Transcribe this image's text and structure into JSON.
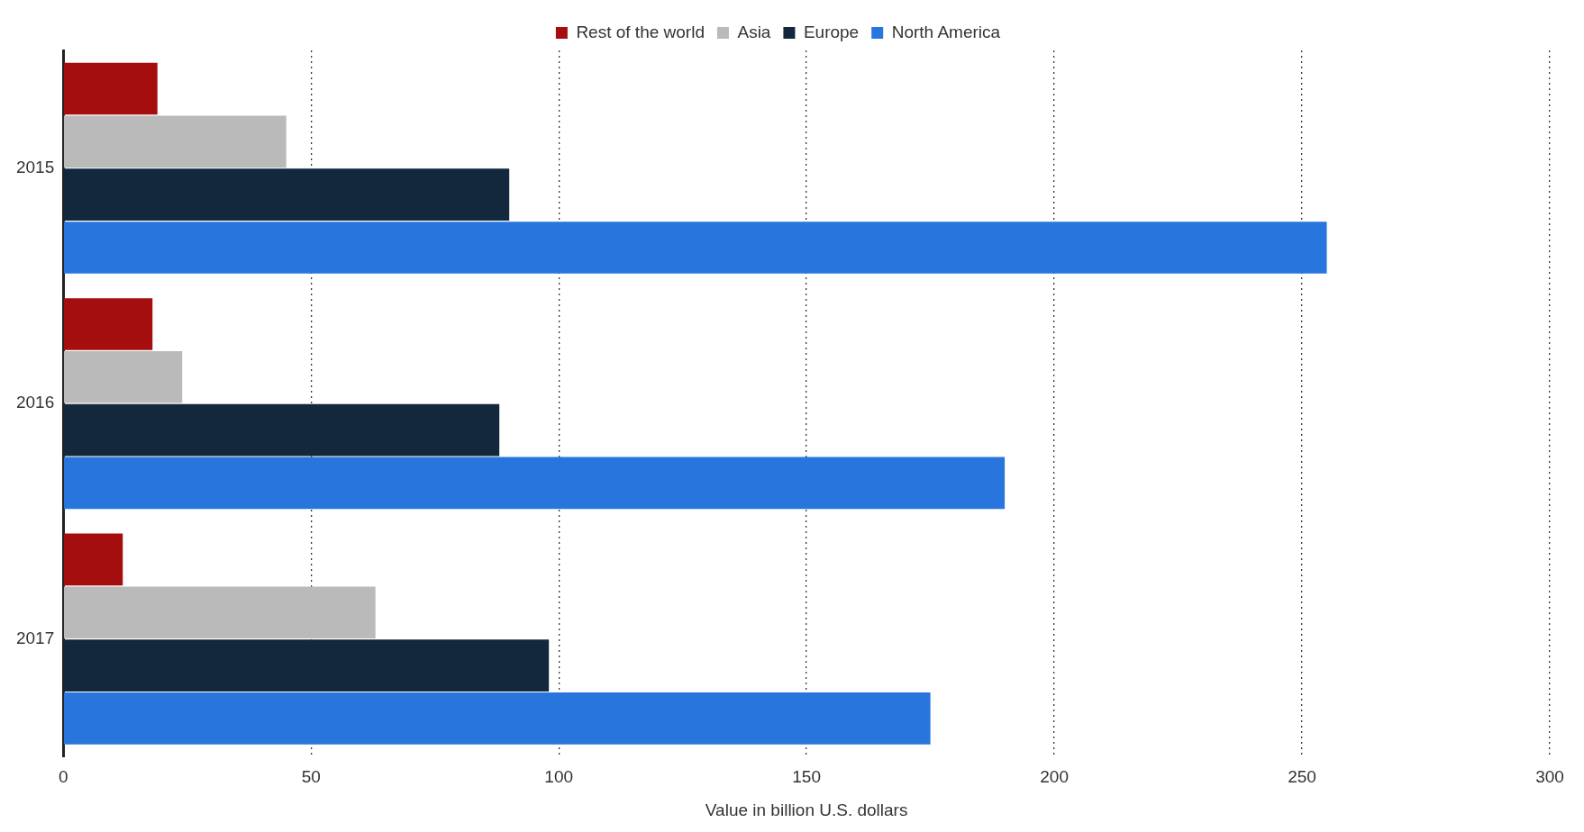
{
  "chart_data": {
    "type": "bar",
    "orientation": "horizontal",
    "xlabel": "Value in billion U.S. dollars",
    "categories": [
      "2015",
      "2016",
      "2017"
    ],
    "series": [
      {
        "name": "Rest of the world",
        "color": "#a50e0e",
        "values": [
          19,
          18,
          12
        ]
      },
      {
        "name": "Asia",
        "color": "#bababa",
        "values": [
          45,
          24,
          63
        ]
      },
      {
        "name": "Europe",
        "color": "#13283d",
        "values": [
          90,
          88,
          98
        ]
      },
      {
        "name": "North America",
        "color": "#2876dd",
        "values": [
          255,
          190,
          175
        ]
      }
    ],
    "xlim": [
      0,
      300
    ],
    "xticks": [
      0,
      50,
      100,
      150,
      200,
      250,
      300
    ],
    "grid": "x",
    "legend": "top"
  }
}
